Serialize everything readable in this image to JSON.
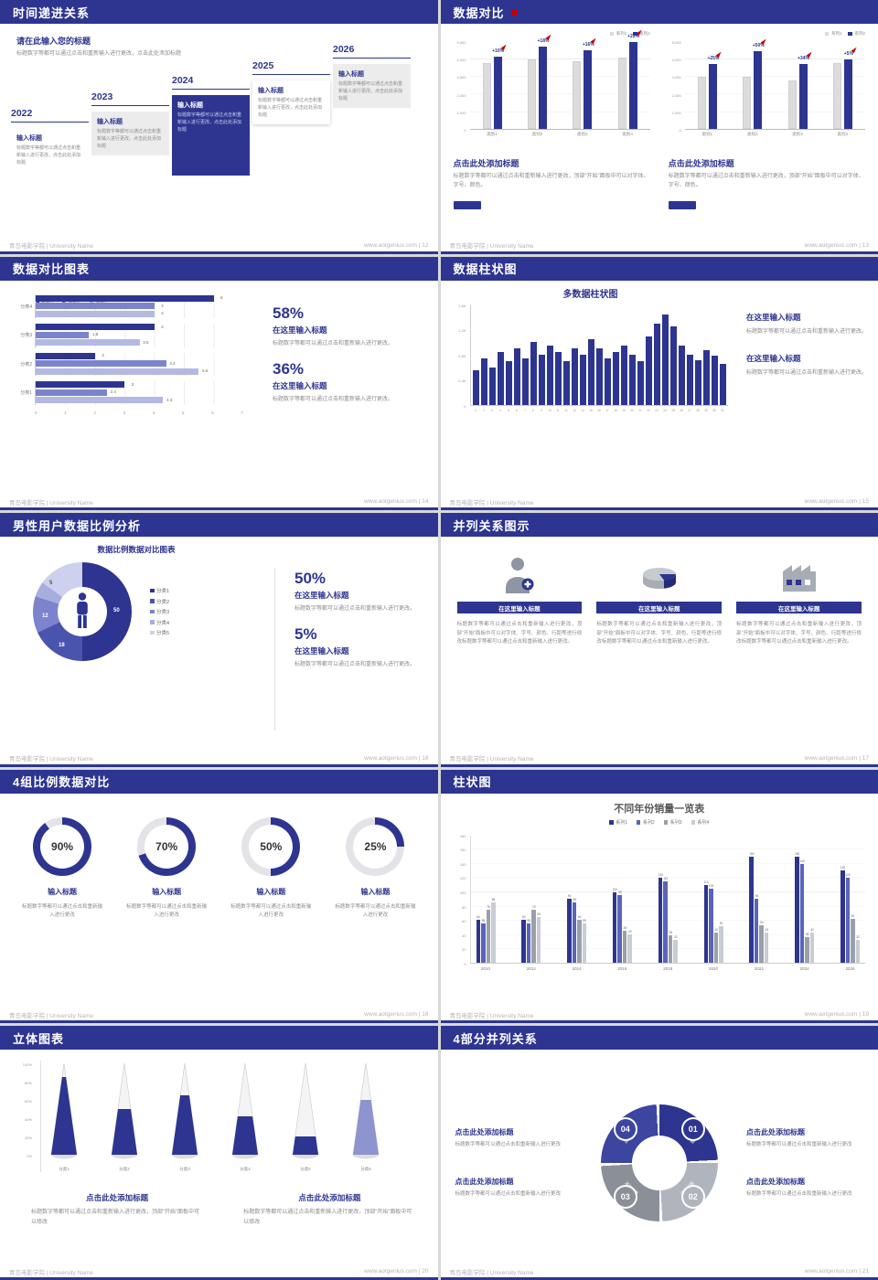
{
  "colors": {
    "navy": "#2d3590",
    "navy_mid": "#5a64b8",
    "periwinkle": "#7b84cc",
    "periwinkle_light": "#b3b9e3",
    "gray_bar": "#dcdcdc",
    "gray_mid": "#9aa0aa",
    "gray_light": "#c9cdd3",
    "red_accent": "#c00000"
  },
  "footer": {
    "university": "青岛电影学院 | University Name",
    "site": "www.aotgenius.com"
  },
  "slides": {
    "s12": {
      "title": "时间递进关系",
      "footer_right": "www.aotgenius.com | 12",
      "intro_title": "请在此输入您的标题",
      "intro_text": "标题数字等都可以通过点击和重新输入进行更改，点击此处添加标题",
      "box_title": "输入标题",
      "box_text": "标题数字等都可以通过点击和重新输入进行更改，点击此处添加标题",
      "years": [
        "2022",
        "2023",
        "2024",
        "2025",
        "2026"
      ]
    },
    "s13": {
      "title": "数据对比",
      "footer_right": "www.aotgenius.com | 13",
      "legend": [
        "系列1",
        "系列2"
      ],
      "heading": "点击此处添加标题",
      "body": "标题数字等都可以通过点击和重新输入进行更改，顶部“开始”面板中可以对字体、字号、颜色。"
    },
    "s14": {
      "title": "数据对比图表",
      "footer_right": "www.aotgenius.com | 14",
      "stats": [
        {
          "pct": "58%",
          "title": "在这里输入标题",
          "body": "标题数字等都可以通过点击和重新输入进行更改。"
        },
        {
          "pct": "36%",
          "title": "在这里输入标题",
          "body": "标题数字等都可以通过点击和重新输入进行更改。"
        }
      ]
    },
    "s15": {
      "title": "数据柱状图",
      "footer_right": "www.aotgenius.com | 15",
      "chart_title": "多数据柱状图",
      "blocks": [
        {
          "title": "在这里输入标题",
          "body": "标题数字等都可以通过点击和重新输入进行更改。"
        },
        {
          "title": "在这里输入标题",
          "body": "标题数字等都可以通过点击和重新输入进行更改。"
        }
      ]
    },
    "s16": {
      "title": "男性用户数据比例分析",
      "footer_right": "www.aotgenius.com | 16",
      "chart_title": "数据比例数据对比图表",
      "stats": [
        {
          "pct": "50%",
          "title": "在这里输入标题",
          "body": "标题数字等都可以通过点击和重新输入进行更改。"
        },
        {
          "pct": "5%",
          "title": "在这里输入标题",
          "body": "标题数字等都可以通过点击和重新输入进行更改。"
        }
      ]
    },
    "s17": {
      "title": "并列关系图示",
      "footer_right": "www.aotgenius.com | 17",
      "columns": [
        {
          "icon": "nurse-icon",
          "header": "在这里输入标题",
          "body": "标题数字等都可以通过点击和重新输入进行更改，顶部“开始”面板中可以对字体、字号、颜色、行距等进行修改标题数字等都可以通过点击和重新输入进行更改。"
        },
        {
          "icon": "pie-3d-icon",
          "header": "在这里输入标题",
          "body": "标题数字等都可以通过点击和重新输入进行更改，顶部“开始”面板中可以对字体、字号、颜色、行距等进行修改标题数字等都可以通过点击和重新输入进行更改。"
        },
        {
          "icon": "factory-icon",
          "header": "在这里输入标题",
          "body": "标题数字等都可以通过点击和重新输入进行更改，顶部“开始”面板中可以对字体、字号、颜色、行距等进行修改标题数字等都可以通过点击和重新输入进行更改。"
        }
      ]
    },
    "s18": {
      "title": "4组比例数据对比",
      "footer_right": "www.aotgenius.com | 18",
      "items": [
        {
          "pct": "90%",
          "title": "输入标题",
          "body": "标题数字等都可以通过点击和重新输入进行更改"
        },
        {
          "pct": "70%",
          "title": "输入标题",
          "body": "标题数字等都可以通过点击和重新输入进行更改"
        },
        {
          "pct": "50%",
          "title": "输入标题",
          "body": "标题数字等都可以通过点击和重新输入进行更改"
        },
        {
          "pct": "25%",
          "title": "输入标题",
          "body": "标题数字等都可以通过点击和重新输入进行更改"
        }
      ]
    },
    "s19": {
      "title": "柱状图",
      "footer_right": "www.aotgenius.com | 19",
      "chart_title": "不同年份销量一览表"
    },
    "s20": {
      "title": "立体图表",
      "footer_right": "www.aotgenius.com | 20",
      "blocks": [
        {
          "title": "点击此处添加标题",
          "body": "标题数字等都可以通过点击和重新输入进行更改，顶部“开始”面板中可以修改"
        },
        {
          "title": "点击此处添加标题",
          "body": "标题数字等都可以通过点击和重新输入进行更改，顶部“开始”面板中可以修改"
        }
      ]
    },
    "s21": {
      "title": "4部分并列关系",
      "footer_right": "www.aotgenius.com | 21",
      "numbers": [
        "01",
        "02",
        "03",
        "04"
      ],
      "segment_label": "添加标题",
      "blocks": [
        {
          "title": "点击此处添加标题",
          "body": "标题数字等都可以通过点击和重新输入进行更改"
        },
        {
          "title": "点击此处添加标题",
          "body": "标题数字等都可以通过点击和重新输入进行更改"
        },
        {
          "title": "点击此处添加标题",
          "body": "标题数字等都可以通过点击和重新输入进行更改"
        },
        {
          "title": "点击此处添加标题",
          "body": "标题数字等都可以通过点击和重新输入进行更改"
        }
      ]
    }
  },
  "chart_data": [
    {
      "id": "bar13a",
      "type": "bar",
      "categories": [
        "类别1",
        "类别2",
        "类别3",
        "类别4"
      ],
      "series": [
        {
          "name": "系列1",
          "values": [
            3800,
            4000,
            3900,
            4100
          ]
        },
        {
          "name": "系列2",
          "values": [
            4180,
            4720,
            4520,
            5000
          ]
        }
      ],
      "bar_labels": [
        "+10%",
        "+18%",
        "+16%",
        "+22%"
      ],
      "yticks": [
        "5,000",
        "4,000",
        "3,000",
        "2,000",
        "1,000",
        "0"
      ],
      "ylim": [
        0,
        5000
      ],
      "legend_position": "top-right"
    },
    {
      "id": "bar13b",
      "type": "bar",
      "categories": [
        "类别1",
        "类别2",
        "类别3",
        "类别4"
      ],
      "series": [
        {
          "name": "系列1",
          "values": [
            3000,
            3000,
            2800,
            3800
          ]
        },
        {
          "name": "系列2",
          "values": [
            3750,
            4500,
            3750,
            4000
          ]
        }
      ],
      "bar_labels": [
        "+25%",
        "+50%",
        "+34%",
        "+5%"
      ],
      "yticks": [
        "5,000",
        "4,000",
        "3,000",
        "2,000",
        "1,000",
        "0"
      ],
      "ylim": [
        0,
        5000
      ],
      "legend_position": "top-right"
    },
    {
      "id": "hbar14",
      "type": "bar",
      "orientation": "horizontal",
      "categories": [
        "分类1",
        "分类2",
        "分类3",
        "分类4"
      ],
      "series": [
        {
          "name": "类别3",
          "values": [
            3,
            2,
            4,
            6
          ]
        },
        {
          "name": "类别2",
          "values": [
            2.4,
            4.4,
            1.8,
            4
          ]
        },
        {
          "name": "类别1",
          "values": [
            4.3,
            5.5,
            3.5,
            4
          ]
        }
      ],
      "xticks": [
        0,
        1,
        2,
        3,
        4,
        5,
        6,
        7
      ],
      "xlim": [
        0,
        7
      ],
      "legend_position": "bottom"
    },
    {
      "id": "col15",
      "type": "bar",
      "title": "多数据柱状图",
      "x": [
        1,
        2,
        3,
        4,
        5,
        6,
        7,
        8,
        9,
        10,
        11,
        12,
        13,
        14,
        15,
        16,
        17,
        18,
        19,
        20,
        21,
        22,
        23,
        24,
        25,
        26,
        27,
        28,
        29,
        30,
        31
      ],
      "values": [
        0.55,
        0.75,
        0.6,
        0.85,
        0.7,
        0.9,
        0.75,
        1.0,
        0.8,
        0.95,
        0.85,
        0.7,
        0.9,
        0.8,
        1.05,
        0.9,
        0.75,
        0.85,
        0.95,
        0.8,
        0.7,
        1.1,
        1.3,
        1.45,
        1.25,
        0.95,
        0.8,
        0.72,
        0.88,
        0.78,
        0.65
      ],
      "yticks": [
        "1.6K",
        "1.2K",
        "0.8K",
        "0.4K",
        "0"
      ],
      "ylim": [
        0,
        1.6
      ]
    },
    {
      "id": "donut16",
      "type": "pie",
      "title": "数据比例数据对比图表",
      "labels": [
        "分类1",
        "分类2",
        "分类3",
        "分类4",
        "分类5"
      ],
      "values": [
        50,
        18,
        12,
        5,
        15
      ],
      "slice_value_labels": [
        "50",
        "18",
        "12",
        "5",
        ""
      ],
      "legend_position": "right"
    },
    {
      "id": "rings18",
      "type": "pie",
      "labels": [
        "90%",
        "70%",
        "50%",
        "25%"
      ],
      "values": [
        90,
        70,
        50,
        25
      ]
    },
    {
      "id": "bars19",
      "type": "bar",
      "title": "不同年份销量一览表",
      "categories": [
        "2010",
        "2012",
        "2014",
        "2016",
        "2018",
        "2020",
        "2022",
        "2024",
        "2026"
      ],
      "series": [
        {
          "name": "系列1",
          "values": [
            60,
            60,
            90,
            100,
            120,
            110,
            150,
            150,
            130
          ]
        },
        {
          "name": "系列2",
          "values": [
            55,
            55,
            85,
            95,
            115,
            105,
            90,
            140,
            120
          ]
        },
        {
          "name": "系列3",
          "values": [
            75,
            75,
            60,
            45,
            38,
            43,
            53,
            36,
            62
          ]
        },
        {
          "name": "系列4",
          "values": [
            85,
            65,
            55,
            40,
            32,
            52,
            43,
            42,
            32
          ]
        }
      ],
      "yticks": [
        0,
        20,
        40,
        60,
        80,
        100,
        120,
        140,
        160,
        180
      ],
      "ylim": [
        0,
        180
      ],
      "legend_position": "top"
    },
    {
      "id": "cones20",
      "type": "bar",
      "style": "3d-cone",
      "categories": [
        "分类1",
        "分类2",
        "分类3",
        "分类4",
        "分类5",
        "分类6"
      ],
      "values": [
        85,
        50,
        65,
        42,
        20,
        60
      ],
      "yticks": [
        "100%",
        "80%",
        "60%",
        "40%",
        "20%",
        "0%"
      ],
      "ylim": [
        0,
        100
      ]
    }
  ]
}
